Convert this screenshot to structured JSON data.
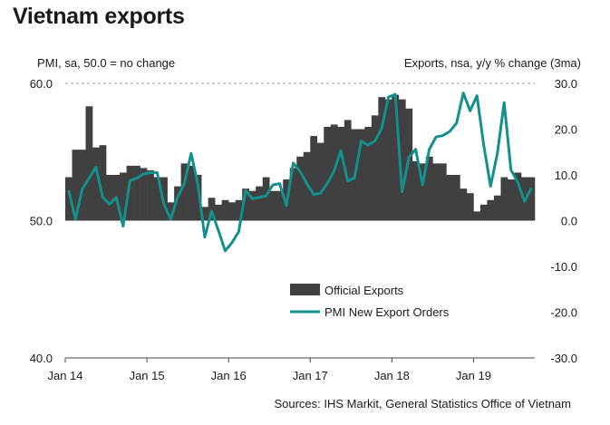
{
  "chart_data": {
    "type": "bar+line",
    "title": "Vietnam exports",
    "left_axis_label": "PMI, sa, 50.0 = no change",
    "right_axis_label": "Exports, nsa, y/y % change (3ma)",
    "source": "Sources: IHS Markit, General Statistics Office of Vietnam",
    "left_axis": {
      "range": [
        40,
        60
      ],
      "ticks": [
        60,
        50,
        40
      ],
      "tick_labels": [
        "60.0",
        "50.0",
        "40.0"
      ],
      "reference_line": 60
    },
    "right_axis": {
      "range": [
        -30,
        30
      ],
      "ticks": [
        30,
        20,
        10,
        0,
        -10,
        -20,
        -30
      ],
      "tick_labels": [
        "30.0",
        "20.0",
        "10.0",
        "0.0",
        "-10.0",
        "-20.0",
        "-30.0"
      ]
    },
    "x_ticks": [
      "Jan 14",
      "Jan 15",
      "Jan 16",
      "Jan 17",
      "Jan 18",
      "Jan 19"
    ],
    "x_start_label": "Jan 14",
    "x_period_count": 69,
    "legend": [
      "Official Exports",
      "PMI New Export Orders"
    ],
    "colors": {
      "bars": "#404040",
      "line": "#138f8c",
      "reference": "#9a9a9a"
    },
    "series": [
      {
        "name": "Official Exports",
        "type": "bar",
        "axis": "right",
        "values": [
          9.5,
          15.5,
          15.5,
          25,
          16,
          16.5,
          10,
          10,
          10.5,
          12,
          12,
          11.5,
          11,
          9.5,
          9.5,
          4,
          7.5,
          12.5,
          12,
          10,
          3,
          5,
          3.5,
          4.5,
          4,
          4.5,
          7,
          6.5,
          7.5,
          9.5,
          6.5,
          6.5,
          9,
          11.5,
          14,
          15,
          18.5,
          17,
          20.5,
          21,
          20.5,
          22,
          20,
          20,
          20.5,
          23,
          27,
          26.5,
          27.5,
          26.5,
          24.5,
          13,
          12.5,
          14,
          12.5,
          12.5,
          10,
          10,
          7,
          6,
          2,
          3.5,
          4.5,
          5.5,
          9.5,
          9,
          10.5,
          9.5,
          9.5
        ]
      },
      {
        "name": "PMI New Export Orders",
        "type": "line",
        "axis": "left",
        "values": [
          52.2,
          50.1,
          52.3,
          53.1,
          53.9,
          51.7,
          51.2,
          51.7,
          49.6,
          52.9,
          53.1,
          53.4,
          53.5,
          53.5,
          51.2,
          50.1,
          51.7,
          52.7,
          54.9,
          52.6,
          48.8,
          50.7,
          49.3,
          47.8,
          48.4,
          49.2,
          52.2,
          51.6,
          51.7,
          51.8,
          52.6,
          52.7,
          51.1,
          54.2,
          53.6,
          52.7,
          51.9,
          52.0,
          52.7,
          53.6,
          55.1,
          52.9,
          53.1,
          55.8,
          55.5,
          55.8,
          56.7,
          59.0,
          59.2,
          52.1,
          54.6,
          55.2,
          52.6,
          55.2,
          56.1,
          56.2,
          56.5,
          57.1,
          59.3,
          58.0,
          59.1,
          55.5,
          52.5,
          54.9,
          58.6,
          53.7,
          52.8,
          51.4,
          52.4
        ]
      }
    ]
  },
  "legend_labels": {
    "bars": "Official Exports",
    "line": "PMI New Export Orders"
  }
}
